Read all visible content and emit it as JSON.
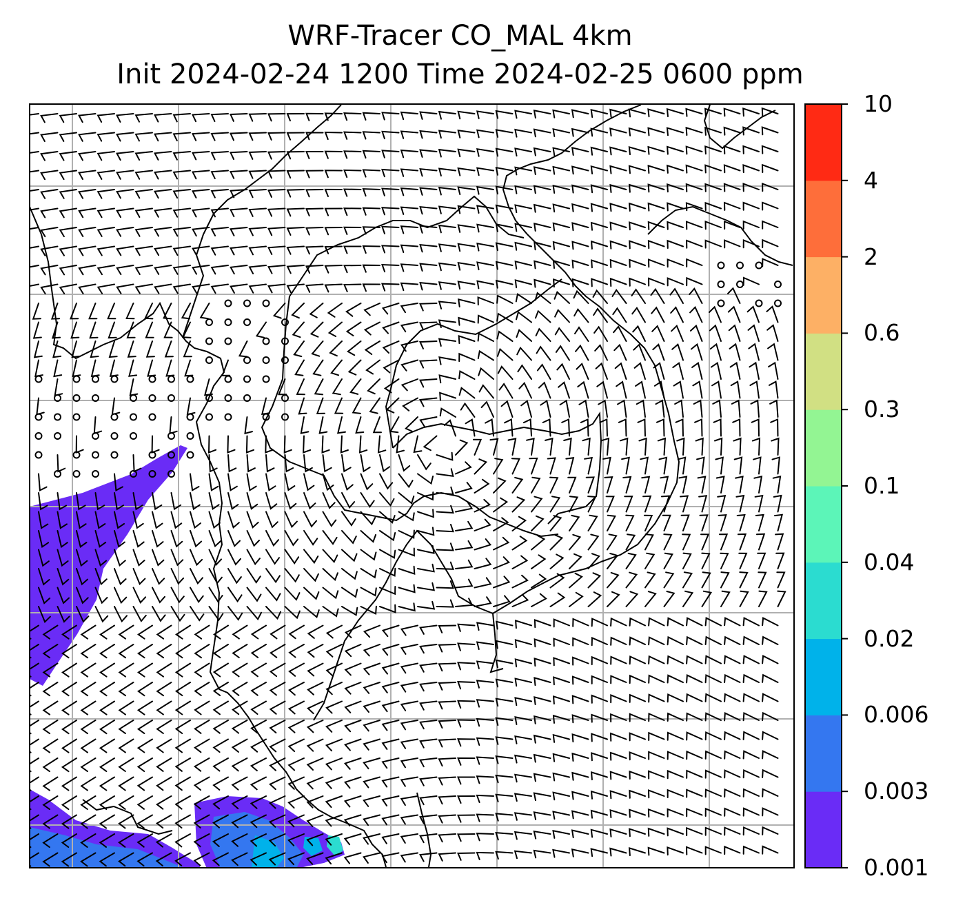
{
  "title": {
    "line1": "WRF-Tracer CO_MAL 4km",
    "line2": "Init 2024-02-24 1200 Time 2024-02-25 0600 ppm"
  },
  "colorbar": {
    "levels": [
      "0.001",
      "0.003",
      "0.006",
      "0.02",
      "0.04",
      "0.1",
      "0.3",
      "0.6",
      "2",
      "4",
      "10"
    ],
    "colors": [
      "#6a2cf6",
      "#3477f0",
      "#00b2ea",
      "#2bdcd0",
      "#5cf5b8",
      "#93f593",
      "#d1e083",
      "#fdb065",
      "#fe6e3a",
      "#ff2a14"
    ]
  },
  "map": {
    "gridlines": true,
    "wind": "barbs",
    "calm_marker": "circle"
  },
  "colors": {
    "frame": "#000000",
    "grid": "#b0b0b0",
    "coast": "#000000"
  }
}
